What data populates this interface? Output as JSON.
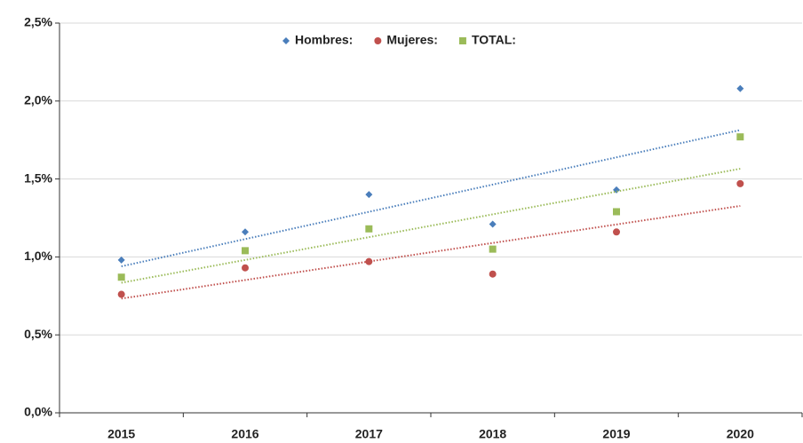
{
  "chart_data": {
    "type": "scatter",
    "categories": [
      "2015",
      "2016",
      "2017",
      "2018",
      "2019",
      "2020"
    ],
    "series": [
      {
        "name": "Hombres:",
        "color": "#4a7ebb",
        "values": [
          0.98,
          1.16,
          1.4,
          1.21,
          1.43,
          2.08
        ]
      },
      {
        "name": "Mujeres:",
        "color": "#c0504d",
        "values": [
          0.76,
          0.93,
          0.97,
          0.89,
          1.16,
          1.47
        ]
      },
      {
        "name": "TOTAL:",
        "color": "#9bbb59",
        "values": [
          0.87,
          1.04,
          1.18,
          1.05,
          1.29,
          1.77
        ]
      }
    ],
    "ylim": [
      0,
      2.5
    ],
    "yticks": [
      {
        "value": 0,
        "label": "0,0%"
      },
      {
        "value": 0.5,
        "label": "0,5%"
      },
      {
        "value": 1,
        "label": "1,0%"
      },
      {
        "value": 1.5,
        "label": "1,5%"
      },
      {
        "value": 2,
        "label": "2,0%"
      },
      {
        "value": 2.5,
        "label": "2,5%"
      }
    ],
    "grid": true,
    "legend": "top"
  }
}
